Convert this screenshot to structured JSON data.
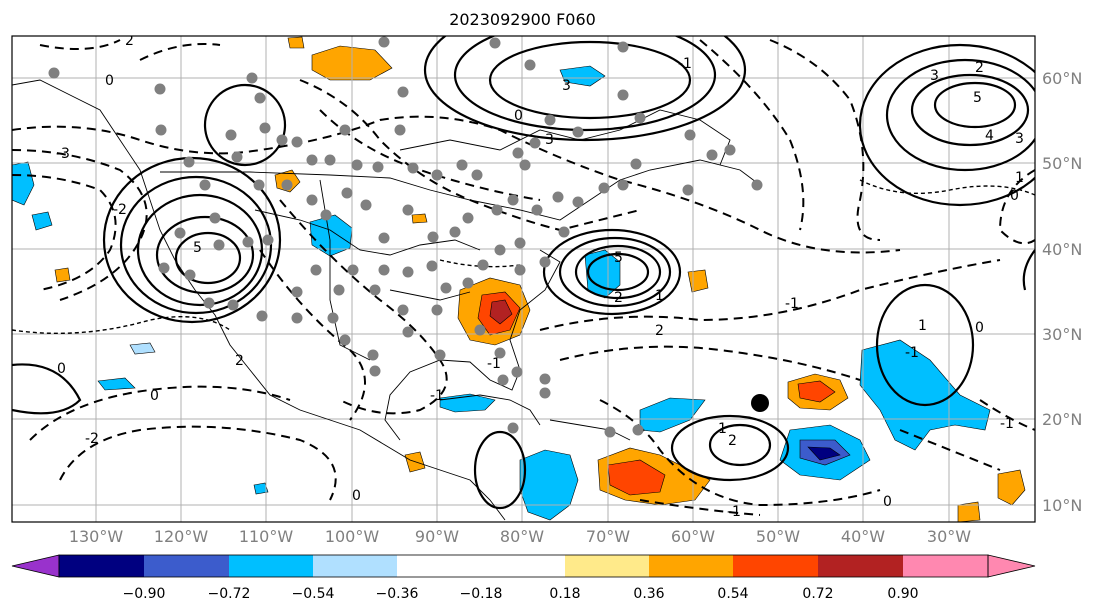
{
  "title": "2023092900 F060",
  "colors": {
    "neg_levels": [
      "#9932cc",
      "#000080",
      "#3c5ccc",
      "#00bfff",
      "#b0e0ff"
    ],
    "zero": "#ffffff",
    "pos_levels": [
      "#ffea8a",
      "#ffa500",
      "#ff4500",
      "#b22222",
      "#ff88b0"
    ],
    "stations": "#808080",
    "contour": "#000000"
  },
  "lon_labels": [
    "130°W",
    "120°W",
    "110°W",
    "100°W",
    "90°W",
    "80°W",
    "70°W",
    "60°W",
    "50°W",
    "40°W",
    "30°W"
  ],
  "lat_labels": [
    "60°N",
    "50°N",
    "40°N",
    "30°N",
    "20°N",
    "10°N"
  ],
  "colorbar": {
    "ticks": [
      "−0.90",
      "−0.72",
      "−0.54",
      "−0.36",
      "−0.18",
      "0.18",
      "0.36",
      "0.54",
      "0.72",
      "0.90"
    ]
  },
  "contour_labels": [
    "2",
    "0",
    "3",
    "5",
    "-3",
    "-2",
    "5",
    "2",
    "3",
    "0",
    "2",
    "1",
    "-1",
    "-1",
    "-2",
    "0",
    "1",
    "0",
    "-1",
    "2",
    "-1",
    "3",
    "2",
    "5",
    "4",
    "3",
    "1",
    "0",
    "1",
    "0",
    "-1",
    "0",
    "-1",
    "0",
    "2",
    "-1"
  ]
}
